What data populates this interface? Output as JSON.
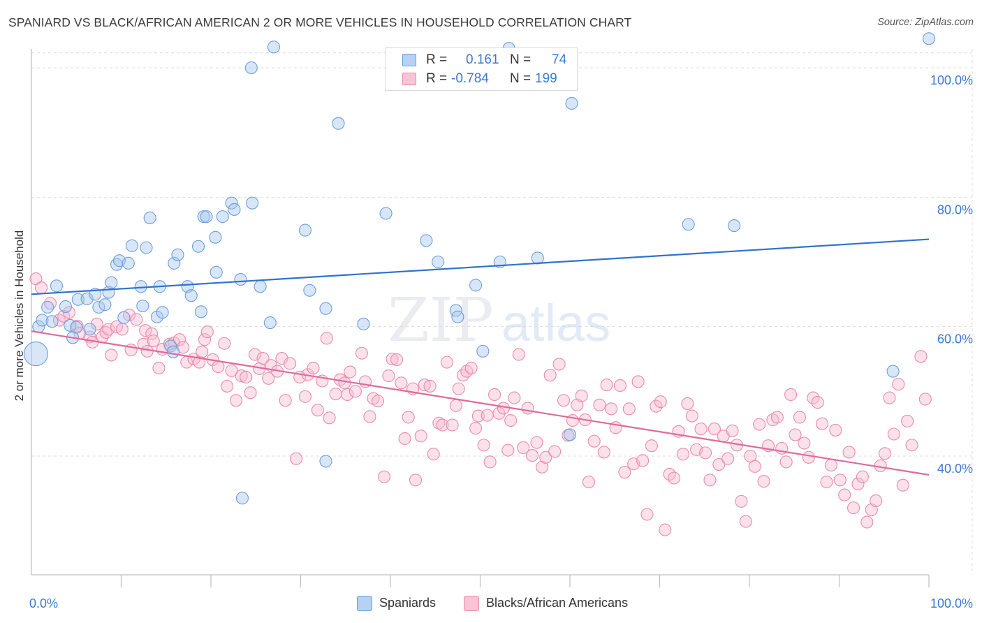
{
  "header": {
    "title": "SPANIARD VS BLACK/AFRICAN AMERICAN 2 OR MORE VEHICLES IN HOUSEHOLD CORRELATION CHART",
    "source": "Source: ZipAtlas.com"
  },
  "watermark": {
    "zip": "ZIP",
    "atlas": "atlas"
  },
  "legend": {
    "rows": [
      {
        "r_label": "R =",
        "r_value": "0.161",
        "n_label": "N =",
        "n_value": "74"
      },
      {
        "r_label": "R =",
        "r_value": "-0.784",
        "n_label": "N =",
        "n_value": "199"
      }
    ]
  },
  "bottom_legend": {
    "series1": "Spaniards",
    "series2": "Blacks/African Americans"
  },
  "colors": {
    "blue_fill": "#a9c8ee",
    "blue_stroke": "#6a9fdf",
    "blue_line": "#2f72d0",
    "pink_fill": "#f6bcd0",
    "pink_stroke": "#ea8aab",
    "pink_line": "#e0699a",
    "axis_text": "#3b78d4",
    "grid": "#dcdcdc"
  },
  "chart_data": {
    "type": "scatter",
    "title": "SPANIARD VS BLACK/AFRICAN AMERICAN 2 OR MORE VEHICLES IN HOUSEHOLD CORRELATION CHART",
    "xlabel": "",
    "ylabel": "2 or more Vehicles in Household",
    "x_tick_labels": [
      "0.0%",
      "100.0%"
    ],
    "y_tick_labels": [
      "40.0%",
      "60.0%",
      "80.0%",
      "100.0%"
    ],
    "xlim": [
      0,
      100
    ],
    "ylim": [
      20,
      102
    ],
    "grid": true,
    "legend_position": "top-center",
    "series": [
      {
        "name": "Spaniards",
        "r": 0.161,
        "n": 74,
        "trend": {
          "x": [
            0,
            100
          ],
          "y": [
            65.0,
            73.5
          ]
        },
        "points": [
          [
            0.5,
            55.8
          ],
          [
            0.8,
            60.0
          ],
          [
            1.2,
            61.0
          ],
          [
            1.8,
            63.0
          ],
          [
            2.3,
            60.8
          ],
          [
            2.8,
            66.3
          ],
          [
            3.8,
            63.1
          ],
          [
            4.3,
            60.2
          ],
          [
            4.6,
            58.3
          ],
          [
            5.0,
            59.9
          ],
          [
            5.2,
            64.2
          ],
          [
            6.2,
            64.3
          ],
          [
            6.5,
            59.6
          ],
          [
            7.1,
            65.0
          ],
          [
            7.5,
            63.0
          ],
          [
            8.2,
            63.4
          ],
          [
            8.6,
            65.3
          ],
          [
            8.9,
            66.8
          ],
          [
            9.5,
            69.6
          ],
          [
            9.8,
            70.2
          ],
          [
            10.3,
            61.4
          ],
          [
            10.8,
            69.8
          ],
          [
            11.2,
            72.5
          ],
          [
            12.2,
            66.2
          ],
          [
            12.4,
            63.2
          ],
          [
            12.8,
            72.2
          ],
          [
            13.2,
            76.8
          ],
          [
            14.0,
            61.5
          ],
          [
            14.3,
            66.2
          ],
          [
            14.6,
            62.2
          ],
          [
            15.5,
            57.0
          ],
          [
            15.8,
            56.1
          ],
          [
            15.9,
            69.8
          ],
          [
            16.3,
            71.1
          ],
          [
            17.4,
            66.2
          ],
          [
            17.8,
            64.8
          ],
          [
            18.6,
            72.4
          ],
          [
            18.9,
            62.3
          ],
          [
            19.2,
            77.0
          ],
          [
            19.5,
            77.0
          ],
          [
            20.5,
            73.8
          ],
          [
            20.6,
            68.4
          ],
          [
            21.3,
            77.0
          ],
          [
            22.3,
            79.1
          ],
          [
            22.6,
            78.1
          ],
          [
            23.3,
            67.3
          ],
          [
            23.5,
            33.5
          ],
          [
            24.5,
            100.0
          ],
          [
            24.6,
            79.1
          ],
          [
            25.5,
            66.2
          ],
          [
            26.6,
            60.6
          ],
          [
            30.5,
            74.9
          ],
          [
            31.0,
            65.6
          ],
          [
            32.8,
            62.8
          ],
          [
            32.8,
            39.2
          ],
          [
            34.2,
            91.4
          ],
          [
            37.0,
            60.4
          ],
          [
            39.5,
            77.5
          ],
          [
            44.0,
            73.3
          ],
          [
            45.3,
            70.0
          ],
          [
            47.3,
            62.5
          ],
          [
            47.5,
            61.5
          ],
          [
            49.5,
            66.4
          ],
          [
            50.3,
            56.2
          ],
          [
            52.2,
            70.0
          ],
          [
            56.4,
            70.6
          ],
          [
            60.0,
            43.3
          ],
          [
            60.2,
            94.5
          ],
          [
            73.2,
            75.8
          ],
          [
            78.3,
            75.6
          ],
          [
            96.0,
            53.1
          ],
          [
            100.0,
            104.5
          ],
          [
            53.2,
            103.0
          ],
          [
            27.0,
            103.2
          ]
        ]
      },
      {
        "name": "Blacks/African Americans",
        "r": -0.784,
        "n": 199,
        "trend": {
          "x": [
            0,
            100
          ],
          "y": [
            59.3,
            37.1
          ]
        },
        "points": [
          [
            0.5,
            67.4
          ],
          [
            1.1,
            66.0
          ],
          [
            2.1,
            63.6
          ],
          [
            3.1,
            61.0
          ],
          [
            3.6,
            61.6
          ],
          [
            4.2,
            62.2
          ],
          [
            5.1,
            60.1
          ],
          [
            5.4,
            59.0
          ],
          [
            6.5,
            58.4
          ],
          [
            6.8,
            57.6
          ],
          [
            7.3,
            60.4
          ],
          [
            7.9,
            58.4
          ],
          [
            8.3,
            59.1
          ],
          [
            8.6,
            59.6
          ],
          [
            8.9,
            55.6
          ],
          [
            9.5,
            60.0
          ],
          [
            10.1,
            59.6
          ],
          [
            10.9,
            61.8
          ],
          [
            11.1,
            56.4
          ],
          [
            11.7,
            61.1
          ],
          [
            12.5,
            57.3
          ],
          [
            12.7,
            59.4
          ],
          [
            12.9,
            56.2
          ],
          [
            13.4,
            58.9
          ],
          [
            13.6,
            57.8
          ],
          [
            14.2,
            53.6
          ],
          [
            14.6,
            56.5
          ],
          [
            15.4,
            57.3
          ],
          [
            15.9,
            57.5
          ],
          [
            16.5,
            58.0
          ],
          [
            16.9,
            56.8
          ],
          [
            17.3,
            54.5
          ],
          [
            18.1,
            55.0
          ],
          [
            18.7,
            54.5
          ],
          [
            19.0,
            56.1
          ],
          [
            19.3,
            58.0
          ],
          [
            19.6,
            59.2
          ],
          [
            20.2,
            54.9
          ],
          [
            20.8,
            53.8
          ],
          [
            21.5,
            57.4
          ],
          [
            21.8,
            50.8
          ],
          [
            22.3,
            53.2
          ],
          [
            22.8,
            48.6
          ],
          [
            23.4,
            52.4
          ],
          [
            23.9,
            52.2
          ],
          [
            24.4,
            49.8
          ],
          [
            24.9,
            55.7
          ],
          [
            25.4,
            53.5
          ],
          [
            25.8,
            55.1
          ],
          [
            26.4,
            52.0
          ],
          [
            26.7,
            54.0
          ],
          [
            27.4,
            53.1
          ],
          [
            27.9,
            55.1
          ],
          [
            28.3,
            48.6
          ],
          [
            28.8,
            54.3
          ],
          [
            29.5,
            39.6
          ],
          [
            29.9,
            52.2
          ],
          [
            30.5,
            49.2
          ],
          [
            30.8,
            52.6
          ],
          [
            31.4,
            53.6
          ],
          [
            31.9,
            47.1
          ],
          [
            32.4,
            51.6
          ],
          [
            32.9,
            58.2
          ],
          [
            33.2,
            45.9
          ],
          [
            33.9,
            49.6
          ],
          [
            34.4,
            51.8
          ],
          [
            34.9,
            51.3
          ],
          [
            35.2,
            49.5
          ],
          [
            35.5,
            53.0
          ],
          [
            36.1,
            50.0
          ],
          [
            36.8,
            55.9
          ],
          [
            37.2,
            51.5
          ],
          [
            37.7,
            46.1
          ],
          [
            38.1,
            48.9
          ],
          [
            38.6,
            48.5
          ],
          [
            39.3,
            36.8
          ],
          [
            39.8,
            52.4
          ],
          [
            40.2,
            55.0
          ],
          [
            40.7,
            54.9
          ],
          [
            41.2,
            51.3
          ],
          [
            41.6,
            42.7
          ],
          [
            42.0,
            46.0
          ],
          [
            42.5,
            50.4
          ],
          [
            42.8,
            36.3
          ],
          [
            43.4,
            43.1
          ],
          [
            43.8,
            51.0
          ],
          [
            44.4,
            50.8
          ],
          [
            44.8,
            40.3
          ],
          [
            45.4,
            45.1
          ],
          [
            45.8,
            44.8
          ],
          [
            46.3,
            54.5
          ],
          [
            46.9,
            44.8
          ],
          [
            47.3,
            47.8
          ],
          [
            47.6,
            50.4
          ],
          [
            48.1,
            52.5
          ],
          [
            48.5,
            53.1
          ],
          [
            49.0,
            53.6
          ],
          [
            49.5,
            44.3
          ],
          [
            49.8,
            46.2
          ],
          [
            50.4,
            41.7
          ],
          [
            50.8,
            46.3
          ],
          [
            51.1,
            39.1
          ],
          [
            51.6,
            49.5
          ],
          [
            52.1,
            46.6
          ],
          [
            52.6,
            47.4
          ],
          [
            53.1,
            40.9
          ],
          [
            53.4,
            45.5
          ],
          [
            53.8,
            49.0
          ],
          [
            54.3,
            55.7
          ],
          [
            54.8,
            41.3
          ],
          [
            55.3,
            47.4
          ],
          [
            55.8,
            40.1
          ],
          [
            56.3,
            42.1
          ],
          [
            56.9,
            38.3
          ],
          [
            57.3,
            39.8
          ],
          [
            57.8,
            52.5
          ],
          [
            58.3,
            40.7
          ],
          [
            58.8,
            54.2
          ],
          [
            59.3,
            48.6
          ],
          [
            59.8,
            43.2
          ],
          [
            60.3,
            45.5
          ],
          [
            60.8,
            47.9
          ],
          [
            61.3,
            49.3
          ],
          [
            61.7,
            45.6
          ],
          [
            62.1,
            36.0
          ],
          [
            62.7,
            42.3
          ],
          [
            63.3,
            47.9
          ],
          [
            63.8,
            40.6
          ],
          [
            64.1,
            51.0
          ],
          [
            64.6,
            47.3
          ],
          [
            65.1,
            44.4
          ],
          [
            65.6,
            50.9
          ],
          [
            66.1,
            37.5
          ],
          [
            66.6,
            47.3
          ],
          [
            67.1,
            38.8
          ],
          [
            67.6,
            51.5
          ],
          [
            68.1,
            39.3
          ],
          [
            68.6,
            31.0
          ],
          [
            69.1,
            41.6
          ],
          [
            69.6,
            47.7
          ],
          [
            70.1,
            48.4
          ],
          [
            70.6,
            28.6
          ],
          [
            71.1,
            37.2
          ],
          [
            71.6,
            36.6
          ],
          [
            72.1,
            43.8
          ],
          [
            72.6,
            40.3
          ],
          [
            73.1,
            48.1
          ],
          [
            73.6,
            46.2
          ],
          [
            74.1,
            41.0
          ],
          [
            74.6,
            44.2
          ],
          [
            75.1,
            40.5
          ],
          [
            75.6,
            36.3
          ],
          [
            76.1,
            44.2
          ],
          [
            76.6,
            38.7
          ],
          [
            77.1,
            43.1
          ],
          [
            77.6,
            39.6
          ],
          [
            78.1,
            43.9
          ],
          [
            78.6,
            41.7
          ],
          [
            79.1,
            33.0
          ],
          [
            79.6,
            29.9
          ],
          [
            80.1,
            40.0
          ],
          [
            80.6,
            38.4
          ],
          [
            81.1,
            44.9
          ],
          [
            81.6,
            36.1
          ],
          [
            82.1,
            41.6
          ],
          [
            82.6,
            45.6
          ],
          [
            83.1,
            46.0
          ],
          [
            83.6,
            41.2
          ],
          [
            84.1,
            39.1
          ],
          [
            84.6,
            49.5
          ],
          [
            85.1,
            43.3
          ],
          [
            85.6,
            46.0
          ],
          [
            86.1,
            42.0
          ],
          [
            86.6,
            39.8
          ],
          [
            87.1,
            49.0
          ],
          [
            87.6,
            48.3
          ],
          [
            88.1,
            45.0
          ],
          [
            88.6,
            36.0
          ],
          [
            89.1,
            38.6
          ],
          [
            89.6,
            44.0
          ],
          [
            90.1,
            36.3
          ],
          [
            90.6,
            34.0
          ],
          [
            91.1,
            40.6
          ],
          [
            91.6,
            32.0
          ],
          [
            92.1,
            35.7
          ],
          [
            92.6,
            36.8
          ],
          [
            93.1,
            29.8
          ],
          [
            93.6,
            31.7
          ],
          [
            94.1,
            33.1
          ],
          [
            94.6,
            38.5
          ],
          [
            95.1,
            40.4
          ],
          [
            95.6,
            49.0
          ],
          [
            96.1,
            43.4
          ],
          [
            96.6,
            51.1
          ],
          [
            97.1,
            35.5
          ],
          [
            97.6,
            45.4
          ],
          [
            98.1,
            41.7
          ],
          [
            99.1,
            55.4
          ],
          [
            99.6,
            48.8
          ]
        ]
      }
    ]
  }
}
